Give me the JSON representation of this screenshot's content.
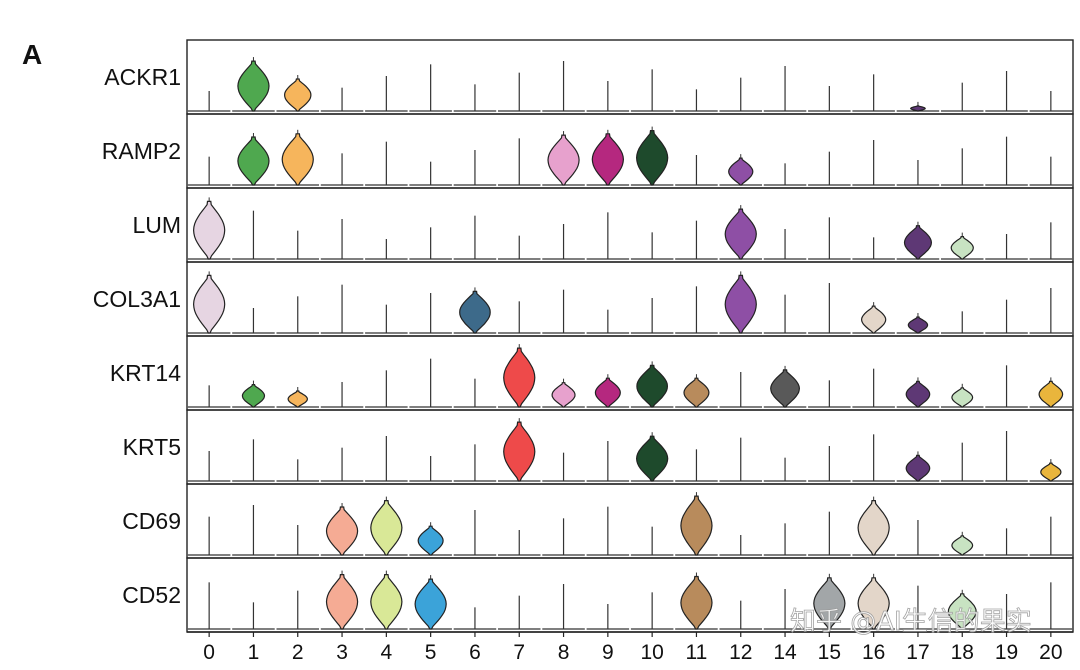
{
  "panel_label": "A",
  "watermark_text": "知乎 @AI生信的果实",
  "chart_data": {
    "type": "stacked-violin",
    "title": "",
    "xlabel": "",
    "ylabel": "",
    "categories": [
      "0",
      "1",
      "2",
      "3",
      "4",
      "5",
      "6",
      "7",
      "8",
      "9",
      "10",
      "11",
      "12",
      "14",
      "15",
      "16",
      "17",
      "18",
      "19",
      "20"
    ],
    "colors": [
      "#e6d5e2",
      "#4fa84f",
      "#f6b55c",
      "#f5ab94",
      "#d9e897",
      "#3ba3d9",
      "#3d6a8a",
      "#ee4a4a",
      "#e7a1cd",
      "#b5287f",
      "#1e4a2c",
      "#b88b5c",
      "#8e4fa5",
      "#595959",
      "#a2a6a8",
      "#e3d6c9",
      "#5e3875",
      "#c8e3c2",
      "#7d7d7d",
      "#e9b53c"
    ],
    "genes": [
      "ACKR1",
      "RAMP2",
      "LUM",
      "COL3A1",
      "KRT14",
      "KRT5",
      "CD69",
      "CD52"
    ],
    "values": [
      [
        0.0,
        0.78,
        0.5,
        0.0,
        0.0,
        0.0,
        0.0,
        0.0,
        0.0,
        0.0,
        0.0,
        0.0,
        0.0,
        0.0,
        0.0,
        0.0,
        0.08,
        0.0,
        0.0,
        0.0
      ],
      [
        0.0,
        0.75,
        0.8,
        0.0,
        0.0,
        0.0,
        0.0,
        0.0,
        0.78,
        0.8,
        0.85,
        0.0,
        0.42,
        0.0,
        0.0,
        0.0,
        0.0,
        0.0,
        0.0,
        0.0
      ],
      [
        0.9,
        0.0,
        0.0,
        0.0,
        0.0,
        0.0,
        0.0,
        0.0,
        0.0,
        0.0,
        0.0,
        0.0,
        0.78,
        0.0,
        0.0,
        0.0,
        0.52,
        0.35,
        0.0,
        0.0
      ],
      [
        0.9,
        0.0,
        0.0,
        0.0,
        0.0,
        0.0,
        0.65,
        0.0,
        0.0,
        0.0,
        0.0,
        0.0,
        0.9,
        0.0,
        0.0,
        0.42,
        0.25,
        0.0,
        0.0,
        0.0
      ],
      [
        0.0,
        0.35,
        0.25,
        0.0,
        0.0,
        0.0,
        0.0,
        0.92,
        0.38,
        0.45,
        0.65,
        0.45,
        0.0,
        0.58,
        0.0,
        0.0,
        0.4,
        0.3,
        0.0,
        0.4
      ],
      [
        0.0,
        0.0,
        0.0,
        0.0,
        0.0,
        0.0,
        0.0,
        0.92,
        0.0,
        0.0,
        0.7,
        0.0,
        0.0,
        0.0,
        0.0,
        0.0,
        0.4,
        0.0,
        0.0,
        0.28
      ],
      [
        0.0,
        0.0,
        0.0,
        0.75,
        0.85,
        0.45,
        0.0,
        0.0,
        0.0,
        0.0,
        0.0,
        0.92,
        0.0,
        0.0,
        0.0,
        0.85,
        0.0,
        0.3,
        0.0,
        0.0
      ],
      [
        0.0,
        0.0,
        0.0,
        0.85,
        0.85,
        0.78,
        0.0,
        0.0,
        0.0,
        0.0,
        0.0,
        0.82,
        0.0,
        0.0,
        0.8,
        0.8,
        0.0,
        0.55,
        0.0,
        0.0
      ]
    ]
  }
}
